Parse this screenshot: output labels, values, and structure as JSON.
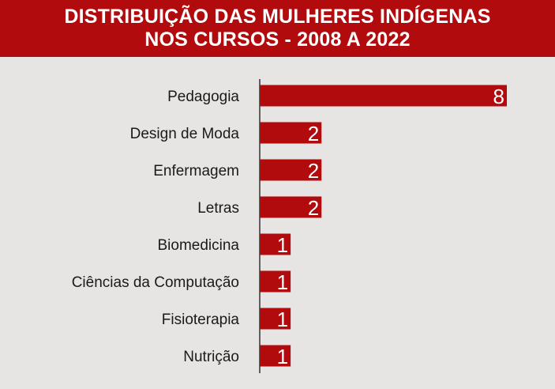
{
  "colors": {
    "accent": "#b10b0d",
    "background": "#e6e5e3",
    "text": "#1a1a1a",
    "axis": "#333333",
    "value_label": "#ffffff"
  },
  "header": {
    "title_line1": "DISTRIBUIÇÃO DAS MULHERES INDÍGENAS",
    "title_line2": "NOS CURSOS - 2008 A 2022"
  },
  "chart_data": {
    "type": "bar",
    "orientation": "horizontal",
    "title": "DISTRIBUIÇÃO DAS MULHERES INDÍGENAS NOS CURSOS - 2008 A 2022",
    "categories": [
      "Pedagogia",
      "Design de Moda",
      "Enfermagem",
      "Letras",
      "Biomedicina",
      "Ciências da Computação",
      "Fisioterapia",
      "Nutrição"
    ],
    "values": [
      8,
      2,
      2,
      2,
      1,
      1,
      1,
      1
    ],
    "data_labels": [
      "8",
      "2",
      "2",
      "2",
      "1",
      "1",
      "1",
      "1"
    ],
    "xlabel": "",
    "ylabel": "",
    "xlim": [
      0,
      8
    ],
    "grid": false,
    "legend": "none"
  }
}
